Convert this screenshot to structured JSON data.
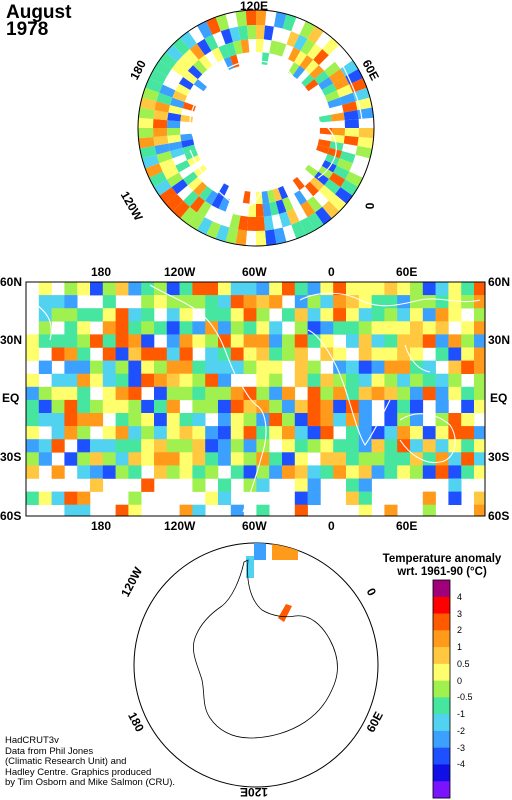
{
  "title": {
    "month": "August",
    "year": "1978"
  },
  "north_map": {
    "lon_labels": {
      "top": "120E",
      "upper_right": "60E",
      "right": "0",
      "lower_left": "120W",
      "upper_left": "180"
    }
  },
  "main_map": {
    "top_lon_labels": [
      "180",
      "120W",
      "60W",
      "0",
      "60E"
    ],
    "bottom_lon_labels": [
      "180",
      "120W",
      "60W",
      "0",
      "60E"
    ],
    "lat_labels": [
      "60N",
      "30N",
      "EQ",
      "30S",
      "60S"
    ]
  },
  "south_map": {
    "lon_labels": {
      "upper_left": "120W",
      "upper_right": "0",
      "lower_left": "180",
      "lower_right": "60E",
      "bottom": "120E"
    }
  },
  "legend": {
    "title_line1": "Temperature anomaly",
    "title_line2": "wrt. 1961-90  (°C)",
    "colors": [
      "#a0007a",
      "#ff0000",
      "#ff5a00",
      "#ff9a1a",
      "#ffc840",
      "#ffff6e",
      "#a0f050",
      "#46e6a0",
      "#50d2f0",
      "#3ca0ff",
      "#1e50ff",
      "#1010e6",
      "#7a14ff"
    ],
    "labels": [
      "4",
      "3",
      "2",
      "1",
      "0.5",
      "0",
      "-0.5",
      "-1",
      "-2",
      "-3",
      "-4"
    ]
  },
  "credits": [
    "HadCRUT3v",
    "Data from Phil Jones",
    "(Climatic Research Unit) and",
    "Hadley Centre.  Graphics produced",
    "by Tim Osborn and Mike Salmon (CRU)."
  ]
}
